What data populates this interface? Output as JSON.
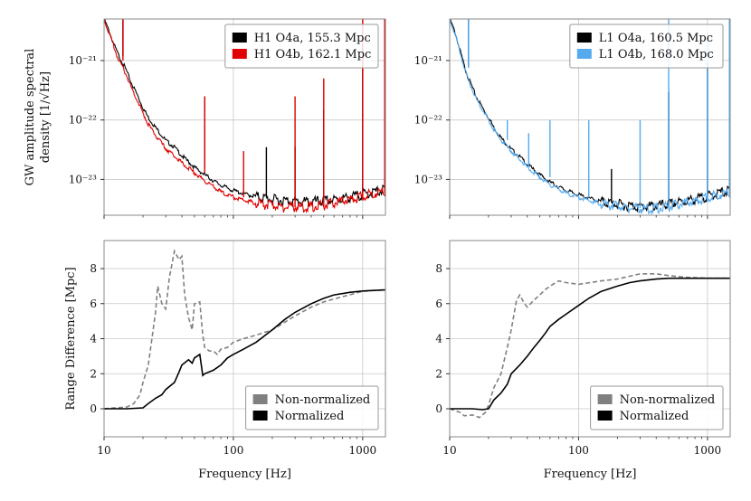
{
  "chart_data": [
    {
      "type": "line",
      "panel": "top-left",
      "title": "",
      "xlabel": "",
      "ylabel": "GW amplitude spectral density [1/√Hz]",
      "ylabel_line1": "GW amplitude spectral",
      "ylabel_line2": "density [1/√Hz]",
      "xscale": "log",
      "yscale": "log",
      "xlim": [
        10,
        1500
      ],
      "ylim": [
        2.5e-24,
        5e-21
      ],
      "xticks": [
        10,
        100,
        1000
      ],
      "yticks": [
        1e-23,
        1e-22,
        1e-21
      ],
      "ytick_labels": [
        "10⁻²³",
        "10⁻²²",
        "10⁻²¹"
      ],
      "grid": true,
      "legend_position": "top-right",
      "series": [
        {
          "name": "H1 O4a, 155.3 Mpc",
          "color": "#000000",
          "x": [
            10,
            11,
            12,
            13,
            14,
            15,
            16,
            18,
            20,
            22,
            25,
            28,
            30,
            35,
            40,
            50,
            60,
            70,
            80,
            100,
            130,
            160,
            200,
            250,
            300,
            350,
            400,
            500,
            600,
            800,
            1000,
            1200,
            1500
          ],
          "values": [
            5e-21,
            3e-21,
            1.8e-21,
            1.2e-21,
            9e-22,
            6.5e-22,
            4.5e-22,
            2.7e-22,
            1.6e-22,
            1.1e-22,
            7.5e-23,
            5.5e-23,
            4.5e-23,
            3.5e-23,
            2.5e-23,
            1.6e-23,
            1.2e-23,
            9.5e-24,
            8e-24,
            6.5e-24,
            5.5e-24,
            5e-24,
            4.6e-24,
            4.4e-24,
            4.3e-24,
            4.2e-24,
            4.2e-24,
            4.3e-24,
            4.5e-24,
            5e-24,
            5.6e-24,
            6e-24,
            6.8e-24
          ],
          "lines": [
            {
              "f": 14,
              "v": 5e-21
            },
            {
              "f": 60,
              "v": 2.5e-22
            },
            {
              "f": 180,
              "v": 3.5e-23
            },
            {
              "f": 300,
              "v": 3.5e-23
            },
            {
              "f": 500,
              "v": 1.5e-22
            },
            {
              "f": 1000,
              "v": 4e-21
            }
          ]
        },
        {
          "name": "H1 O4b, 162.1 Mpc",
          "color": "#e00000",
          "x": [
            10,
            11,
            12,
            13,
            14,
            15,
            16,
            18,
            20,
            22,
            25,
            28,
            30,
            35,
            40,
            50,
            60,
            70,
            80,
            100,
            130,
            160,
            200,
            250,
            300,
            350,
            400,
            500,
            600,
            800,
            1000,
            1200,
            1500
          ],
          "values": [
            5e-21,
            2.8e-21,
            1.6e-21,
            1e-21,
            7.5e-22,
            5.5e-22,
            3.8e-22,
            2.2e-22,
            1.3e-22,
            8.5e-23,
            5.5e-23,
            4e-23,
            3.3e-23,
            2.5e-23,
            1.9e-23,
            1.3e-23,
            9.5e-24,
            7.5e-24,
            6.2e-24,
            5e-24,
            4.3e-24,
            3.9e-24,
            3.6e-24,
            3.4e-24,
            3.4e-24,
            3.4e-24,
            3.5e-24,
            3.7e-24,
            4e-24,
            4.6e-24,
            5.2e-24,
            5.8e-24,
            6.5e-24
          ],
          "lines": [
            {
              "f": 14,
              "v": 5e-21
            },
            {
              "f": 60,
              "v": 2.5e-22
            },
            {
              "f": 120,
              "v": 3e-23
            },
            {
              "f": 300,
              "v": 2.5e-22
            },
            {
              "f": 500,
              "v": 5e-22
            },
            {
              "f": 1000,
              "v": 5e-21
            },
            {
              "f": 1480,
              "v": 5e-21
            }
          ]
        }
      ]
    },
    {
      "type": "line",
      "panel": "top-right",
      "title": "",
      "xlabel": "",
      "ylabel": "",
      "xscale": "log",
      "yscale": "log",
      "xlim": [
        10,
        1500
      ],
      "ylim": [
        2.5e-24,
        5e-21
      ],
      "xticks": [
        10,
        100,
        1000
      ],
      "yticks": [
        1e-23,
        1e-22,
        1e-21
      ],
      "ytick_labels": [
        "10⁻²³",
        "10⁻²²",
        "10⁻²¹"
      ],
      "grid": true,
      "legend_position": "top-right",
      "series": [
        {
          "name": "L1 O4a, 160.5 Mpc",
          "color": "#000000",
          "x": [
            10,
            11,
            12,
            13,
            14,
            15,
            16,
            18,
            20,
            22,
            25,
            28,
            30,
            35,
            40,
            50,
            60,
            70,
            80,
            100,
            130,
            160,
            200,
            250,
            300,
            350,
            400,
            500,
            600,
            800,
            1000,
            1200,
            1500
          ],
          "values": [
            5e-21,
            3e-21,
            1.5e-21,
            8e-22,
            5e-22,
            3.5e-22,
            2.5e-22,
            1.6e-22,
            1.1e-22,
            7.5e-23,
            5e-23,
            3.8e-23,
            3.2e-23,
            2.4e-23,
            1.8e-23,
            1.2e-23,
            9e-24,
            7.5e-24,
            6.5e-24,
            5.5e-24,
            4.6e-24,
            4.1e-24,
            3.8e-24,
            3.6e-24,
            3.5e-24,
            3.5e-24,
            3.6e-24,
            3.8e-24,
            4.1e-24,
            4.6e-24,
            5.2e-24,
            5.8e-24,
            6.5e-24
          ],
          "lines": [
            {
              "f": 14,
              "v": 5e-21
            },
            {
              "f": 180,
              "v": 1.5e-23
            },
            {
              "f": 500,
              "v": 3e-22
            },
            {
              "f": 1000,
              "v": 1e-21
            }
          ]
        },
        {
          "name": "L1 O4b, 168.0 Mpc",
          "color": "#55aaee",
          "x": [
            10,
            11,
            12,
            13,
            14,
            15,
            16,
            18,
            20,
            22,
            25,
            28,
            30,
            35,
            40,
            50,
            60,
            70,
            80,
            100,
            130,
            160,
            200,
            250,
            300,
            350,
            400,
            500,
            600,
            800,
            1000,
            1200,
            1500
          ],
          "values": [
            5e-21,
            2.8e-21,
            1.4e-21,
            7.5e-22,
            4.6e-22,
            3.2e-22,
            2.3e-22,
            1.5e-22,
            1e-22,
            7e-23,
            4.6e-23,
            3.5e-23,
            3e-23,
            2.2e-23,
            1.6e-23,
            1.1e-23,
            8.2e-24,
            6.8e-24,
            5.9e-24,
            5e-24,
            4.2e-24,
            3.8e-24,
            3.5e-24,
            3.3e-24,
            3.2e-24,
            3.2e-24,
            3.3e-24,
            3.5e-24,
            3.8e-24,
            4.3e-24,
            4.9e-24,
            5.5e-24,
            6.2e-24
          ],
          "lines": [
            {
              "f": 14,
              "v": 5e-21
            },
            {
              "f": 28,
              "v": 1e-22
            },
            {
              "f": 41,
              "v": 6e-23
            },
            {
              "f": 60,
              "v": 1e-22
            },
            {
              "f": 120,
              "v": 1e-22
            },
            {
              "f": 300,
              "v": 1e-22
            },
            {
              "f": 500,
              "v": 5e-21
            },
            {
              "f": 1000,
              "v": 3e-21
            },
            {
              "f": 1480,
              "v": 5e-21
            }
          ]
        }
      ]
    },
    {
      "type": "line",
      "panel": "bottom-left",
      "title": "",
      "xlabel": "Frequency [Hz]",
      "ylabel": "Range Difference [Mpc]",
      "xscale": "log",
      "yscale": "linear",
      "xlim": [
        10,
        1500
      ],
      "ylim": [
        -1.6,
        9.6
      ],
      "xticks": [
        10,
        100,
        1000
      ],
      "xtick_labels": [
        "10",
        "100",
        "1000"
      ],
      "yticks": [
        0,
        2,
        4,
        6,
        8
      ],
      "grid": true,
      "legend_position": "bottom-right",
      "series": [
        {
          "name": "Non-normalized",
          "color": "#808080",
          "dashed": true,
          "x": [
            10,
            12,
            15,
            17,
            19,
            20,
            22,
            25,
            26,
            28,
            30,
            32,
            35,
            38,
            40,
            42,
            45,
            48,
            50,
            55,
            58,
            60,
            65,
            70,
            75,
            80,
            90,
            100,
            120,
            150,
            200,
            300,
            400,
            500,
            700,
            1000,
            1500
          ],
          "values": [
            0,
            0.05,
            0.1,
            0.3,
            0.8,
            1.5,
            2.5,
            5.5,
            7,
            6,
            5.7,
            7.5,
            9,
            8.5,
            8.7,
            6.5,
            5.2,
            4.5,
            6,
            6.1,
            4.2,
            3.5,
            3.3,
            3.3,
            3.1,
            3.4,
            3.5,
            3.8,
            4,
            4.2,
            4.5,
            5.3,
            5.8,
            6.1,
            6.4,
            6.7,
            6.8
          ]
        },
        {
          "name": "Normalized",
          "color": "#000000",
          "dashed": false,
          "x": [
            10,
            15,
            20,
            22,
            25,
            28,
            30,
            35,
            38,
            40,
            45,
            48,
            50,
            55,
            58,
            60,
            65,
            70,
            80,
            90,
            100,
            120,
            150,
            200,
            250,
            300,
            400,
            500,
            600,
            800,
            1000,
            1200,
            1500
          ],
          "values": [
            0,
            0,
            0.05,
            0.3,
            0.6,
            0.8,
            1.1,
            1.5,
            2.1,
            2.5,
            2.8,
            2.6,
            2.9,
            3.1,
            1.9,
            2,
            2.1,
            2.2,
            2.5,
            2.9,
            3.1,
            3.4,
            3.8,
            4.5,
            5.1,
            5.5,
            6,
            6.3,
            6.5,
            6.65,
            6.72,
            6.75,
            6.78
          ]
        }
      ]
    },
    {
      "type": "line",
      "panel": "bottom-right",
      "title": "",
      "xlabel": "Frequency [Hz]",
      "ylabel": "",
      "xscale": "log",
      "yscale": "linear",
      "xlim": [
        10,
        1500
      ],
      "ylim": [
        -1.6,
        9.6
      ],
      "xticks": [
        10,
        100,
        1000
      ],
      "xtick_labels": [
        "10",
        "100",
        "1000"
      ],
      "yticks": [
        0,
        2,
        4,
        6,
        8
      ],
      "grid": true,
      "legend_position": "bottom-right",
      "series": [
        {
          "name": "Non-normalized",
          "color": "#808080",
          "dashed": true,
          "x": [
            10,
            12,
            13,
            15,
            17,
            19,
            20,
            22,
            25,
            28,
            30,
            33,
            35,
            38,
            40,
            45,
            50,
            55,
            60,
            70,
            80,
            100,
            150,
            200,
            300,
            400,
            500,
            700,
            1000,
            1500
          ],
          "values": [
            0,
            -0.2,
            -0.4,
            -0.35,
            -0.5,
            -0.2,
            0.2,
            1.2,
            2,
            3.5,
            4.5,
            6.2,
            6.5,
            6,
            5.8,
            6.2,
            6.5,
            6.8,
            7,
            7.3,
            7.2,
            7.1,
            7.3,
            7.4,
            7.7,
            7.7,
            7.6,
            7.5,
            7.45,
            7.45
          ]
        },
        {
          "name": "Normalized",
          "color": "#000000",
          "dashed": false,
          "x": [
            10,
            15,
            18,
            20,
            22,
            25,
            28,
            30,
            35,
            40,
            45,
            50,
            55,
            60,
            70,
            80,
            100,
            120,
            150,
            200,
            250,
            300,
            400,
            500,
            700,
            1000,
            1500
          ],
          "values": [
            0,
            0,
            -0.05,
            0,
            0.5,
            0.9,
            1.4,
            2,
            2.5,
            3,
            3.5,
            3.9,
            4.3,
            4.7,
            5.1,
            5.4,
            5.9,
            6.3,
            6.7,
            7,
            7.2,
            7.3,
            7.4,
            7.45,
            7.45,
            7.45,
            7.45
          ]
        }
      ]
    }
  ]
}
